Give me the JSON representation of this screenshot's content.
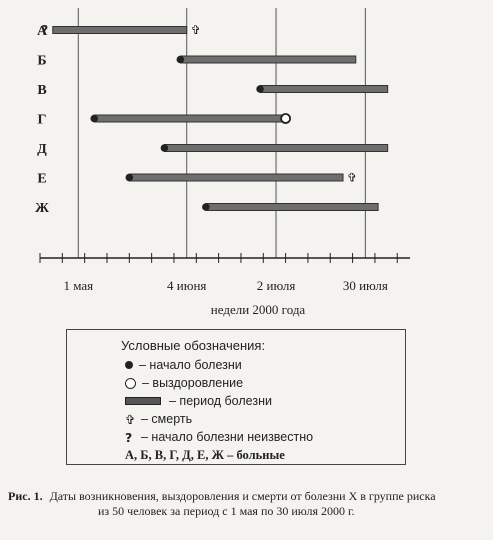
{
  "chart_data": {
    "type": "gantt",
    "rows": [
      "А",
      "Б",
      "В",
      "Г",
      "Д",
      "Е",
      "Ж"
    ],
    "x_ticks": [
      {
        "label": "1 мая",
        "date": "2000-05-01"
      },
      {
        "label": "4 июня",
        "date": "2000-06-04"
      },
      {
        "label": "2 июля",
        "date": "2000-07-02"
      },
      {
        "label": "30 июля",
        "date": "2000-07-30"
      }
    ],
    "xlabel": "недели 2000 года",
    "xlim": [
      "2000-04-19",
      "2000-08-13"
    ],
    "grid": "vertical lines at tick dates",
    "intervals": [
      {
        "patient": "А",
        "start": "2000-04-23",
        "end": "2000-06-04",
        "start_marker": "unknown",
        "end_marker": "death"
      },
      {
        "patient": "Б",
        "start": "2000-06-02",
        "end": "2000-07-27",
        "start_marker": "onset",
        "end_marker": "none"
      },
      {
        "patient": "В",
        "start": "2000-06-27",
        "end": "2000-08-06",
        "start_marker": "onset",
        "end_marker": "none"
      },
      {
        "patient": "Г",
        "start": "2000-05-06",
        "end": "2000-07-05",
        "start_marker": "onset",
        "end_marker": "recovery"
      },
      {
        "patient": "Д",
        "start": "2000-05-28",
        "end": "2000-08-06",
        "start_marker": "onset",
        "end_marker": "none"
      },
      {
        "patient": "Е",
        "start": "2000-05-17",
        "end": "2000-07-23",
        "start_marker": "onset",
        "end_marker": "death"
      },
      {
        "patient": "Ж",
        "start": "2000-06-10",
        "end": "2000-08-03",
        "start_marker": "onset",
        "end_marker": "none"
      }
    ]
  },
  "legend": {
    "title": "Условные обозначения:",
    "onset": "– начало болезни",
    "recovery": "– выздоровление",
    "period": "– период болезни",
    "death_symbol": "✞",
    "death": "– смерть",
    "unknown_symbol": "?",
    "unknown": "– начало болезни неизвестно",
    "patients": "А, Б, В, Г, Д, Е, Ж – больные"
  },
  "caption": {
    "label": "Рис. 1.",
    "line1": "Даты возникновения, выздоровления и смерти от болезни X в группе риска",
    "line2": "из 50 человек за период с 1 мая по 30 июля 2000 г."
  },
  "colors": {
    "bar_fill": "#6e6e6e",
    "bar_edge": "#333333",
    "ink": "#222222",
    "grid": "#555555"
  }
}
